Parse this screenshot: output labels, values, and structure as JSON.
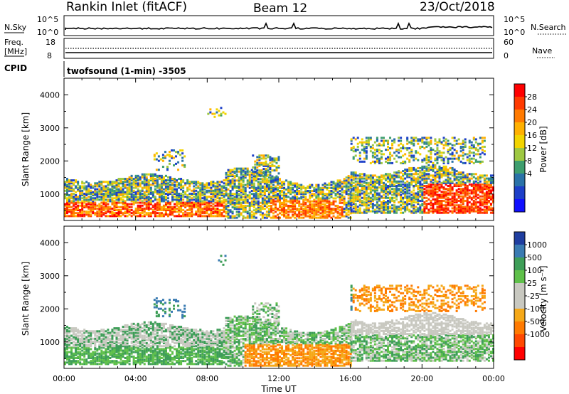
{
  "header": {
    "station": "Rankin Inlet (fitACF)",
    "beam": "Beam 12",
    "date": "23/Oct/2018"
  },
  "strip_nsky": {
    "left_label": "N.Sky",
    "right_label": "N.Search",
    "left_ticks": [
      "10^5",
      "10^0"
    ],
    "right_ticks": [
      "10^5",
      "10^0"
    ]
  },
  "strip_freq": {
    "left_label_line1": "Freq.",
    "left_label_line2": "[MHz]",
    "left_ticks": [
      "18",
      "8"
    ],
    "right_label": "Nave",
    "right_ticks": [
      "60",
      "0"
    ]
  },
  "cpid": {
    "label": "CPID",
    "value": "twofsound (1-min) -3505"
  },
  "chart_data": [
    {
      "type": "heatmap",
      "name": "power",
      "ylabel": "Slant Range [km]",
      "ylim": [
        200,
        4500
      ],
      "yticks": [
        1000,
        2000,
        3000,
        4000
      ],
      "xlim": [
        0,
        24
      ],
      "colorbar_label": "Power [dB]",
      "colorbar_ticks": [
        "28",
        "24",
        "20",
        "16",
        "12",
        "8",
        "4"
      ],
      "colorbar_colors": [
        "#ff0000",
        "#ff3a00",
        "#ff7a00",
        "#ffb000",
        "#f2d400",
        "#9ec842",
        "#3e9e6e",
        "#2a72a8",
        "#1d3fc8",
        "#1010ff"
      ]
    },
    {
      "type": "heatmap",
      "name": "velocity",
      "ylabel": "Slant Range [km]",
      "ylim": [
        200,
        4500
      ],
      "yticks": [
        1000,
        2000,
        3000,
        4000
      ],
      "xlim": [
        0,
        24
      ],
      "xlabel": "Time UT",
      "xticks": [
        "00:00",
        "04:00",
        "08:00",
        "12:00",
        "16:00",
        "20:00",
        "00:00"
      ],
      "colorbar_label": "Velocity [m s⁻¹]",
      "colorbar_ticks": [
        "1000",
        "500",
        "100",
        "25",
        "-25",
        "-100",
        "-500",
        "-1000"
      ],
      "colorbar_colors": [
        "#1f3ea0",
        "#3a7bb2",
        "#3e9e58",
        "#5fc04a",
        "#c8c8c0",
        "#c8c8c0",
        "#f5a818",
        "#ff7a00",
        "#ff4800",
        "#ff0000"
      ]
    }
  ]
}
